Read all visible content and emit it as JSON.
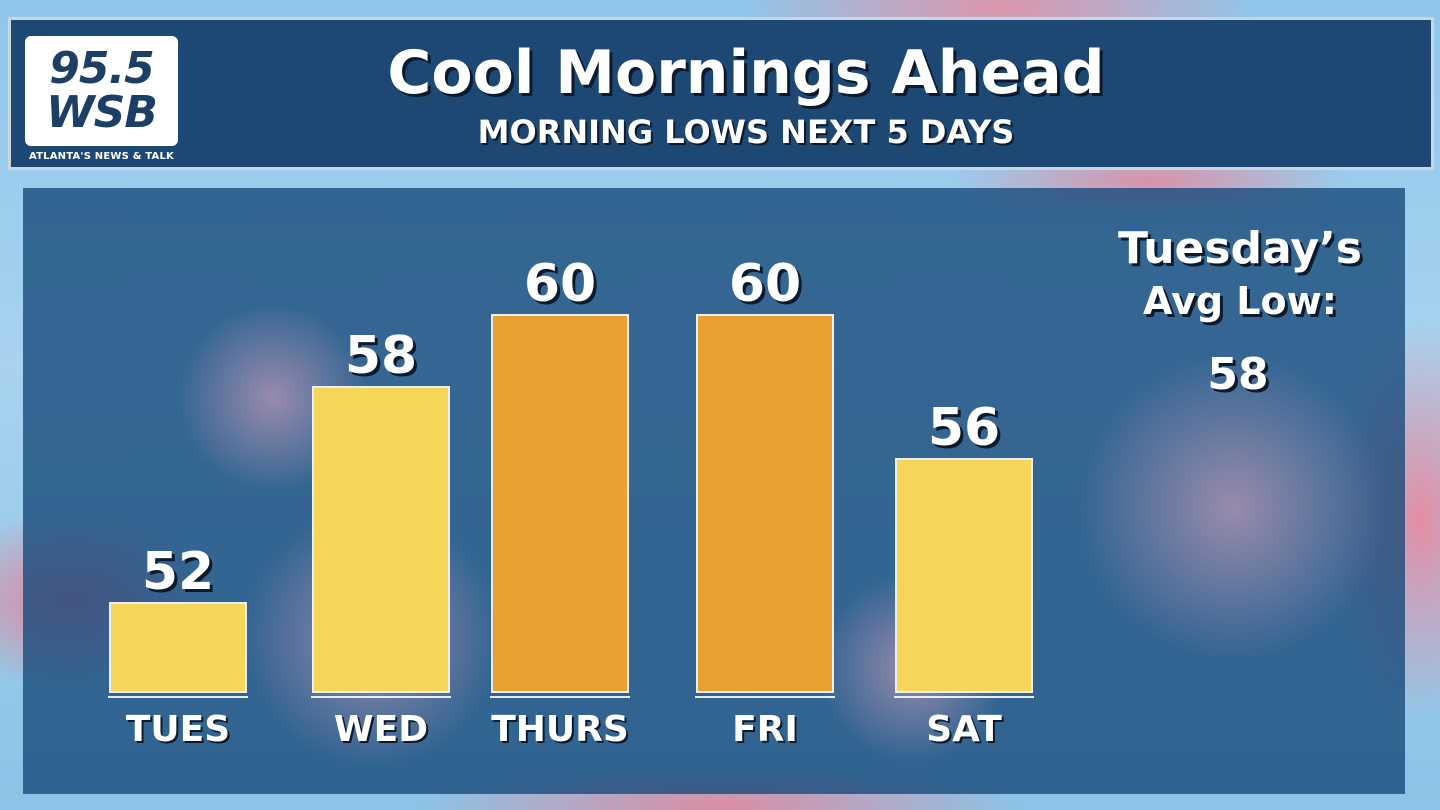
{
  "header": {
    "logo_line1": "95.5",
    "logo_line2": "WSB",
    "logo_tagline": "ATLANTA'S NEWS & TALK",
    "title": "Cool Mornings Ahead",
    "subtitle": "MORNING LOWS NEXT 5 DAYS"
  },
  "average": {
    "label_line1": "Tuesday’s",
    "label_line2": "Avg Low:",
    "value": "58"
  },
  "colors": {
    "bar_yellow": "#f5d55a",
    "bar_orange": "#e8a030",
    "panel": "#1c4873"
  },
  "chart_data": {
    "type": "bar",
    "title": "Cool Mornings Ahead",
    "subtitle": "MORNING LOWS NEXT 5 DAYS",
    "categories": [
      "TUES",
      "WED",
      "THURS",
      "FRI",
      "SAT"
    ],
    "values": [
      52,
      58,
      60,
      60,
      56
    ],
    "bar_colors": [
      "#f5d55a",
      "#f5d55a",
      "#e8a030",
      "#e8a030",
      "#f5d55a"
    ],
    "grid": false,
    "legend": "none"
  }
}
